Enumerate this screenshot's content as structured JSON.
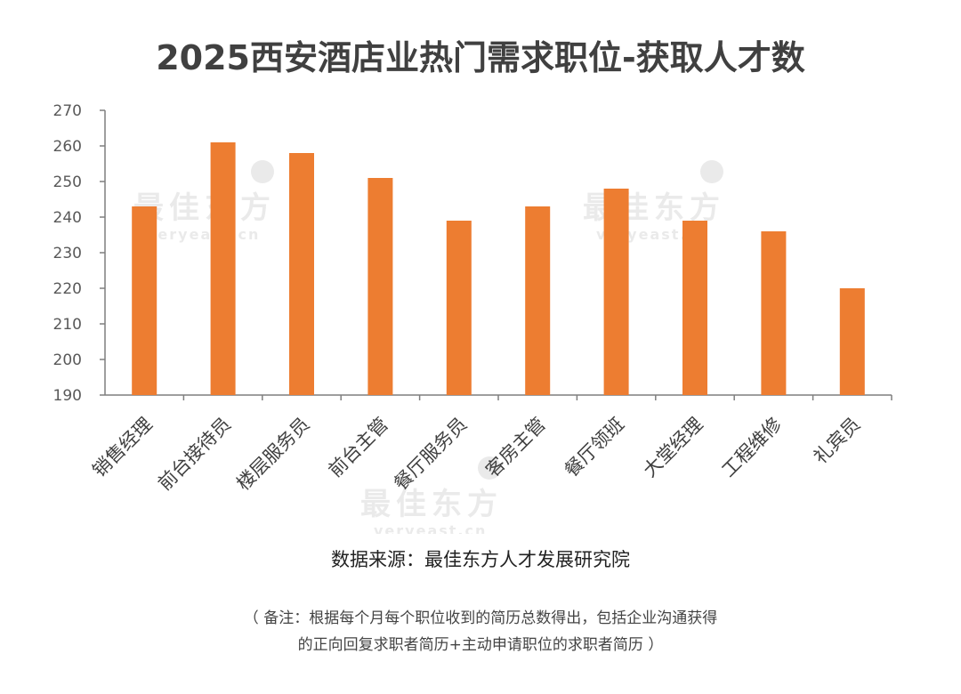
{
  "chart_data": {
    "type": "bar",
    "title": "2025西安酒店业热门需求职位-获取人才数",
    "categories": [
      "销售经理",
      "前台接待员",
      "楼层服务员",
      "前台主管",
      "餐厅服务员",
      "客房主管",
      "餐厅领班",
      "大堂经理",
      "工程维修",
      "礼宾员"
    ],
    "values": [
      243,
      261,
      258,
      251,
      239,
      243,
      248,
      239,
      236,
      220
    ],
    "ylim": [
      190,
      270
    ],
    "yticks": [
      190,
      200,
      210,
      220,
      230,
      240,
      250,
      260,
      270
    ],
    "xlabel": "",
    "ylabel": "",
    "bar_color": "#ED7D31",
    "grid": false
  },
  "source": "数据来源：最佳东方人才发展研究院",
  "note_line1": "（ 备注：根据每个月每个职位收到的简历总数得出，包括企业沟通获得",
  "note_line2": "的正向回复求职者简历+主动申请职位的求职者简历 ）",
  "watermark": {
    "cn": "最佳东方",
    "en": "veryeast.cn"
  }
}
